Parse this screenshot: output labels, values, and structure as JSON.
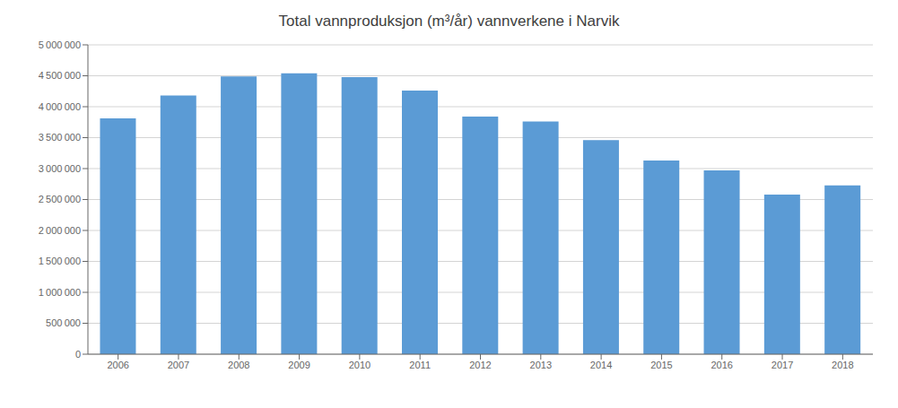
{
  "chart_data": {
    "type": "bar",
    "title": "Total vannproduksjon (m³/år) vannverkene i Narvik",
    "categories": [
      "2006",
      "2007",
      "2008",
      "2009",
      "2010",
      "2011",
      "2012",
      "2013",
      "2014",
      "2015",
      "2016",
      "2017",
      "2018"
    ],
    "values": [
      3810000,
      4180000,
      4490000,
      4540000,
      4480000,
      4260000,
      3840000,
      3760000,
      3460000,
      3130000,
      2970000,
      2580000,
      2730000
    ],
    "color": "#5b9bd5",
    "ylim": [
      0,
      5000000
    ],
    "yticks": [
      0,
      {
        "value": 500000,
        "label": "500 000"
      },
      {
        "value": 1000000,
        "label": "1 000 000"
      },
      {
        "value": 1500000,
        "label": "1 500 000"
      },
      {
        "value": 2000000,
        "label": "2 000 000"
      },
      {
        "value": 2500000,
        "label": "2 500 000"
      },
      {
        "value": 3000000,
        "label": "3 000 000"
      },
      {
        "value": 3500000,
        "label": "3 500 000"
      },
      {
        "value": 4000000,
        "label": "4 000 000"
      },
      {
        "value": 4500000,
        "label": "4 500 000"
      },
      {
        "value": 5000000,
        "label": "5 000 000"
      }
    ],
    "grid": true
  }
}
